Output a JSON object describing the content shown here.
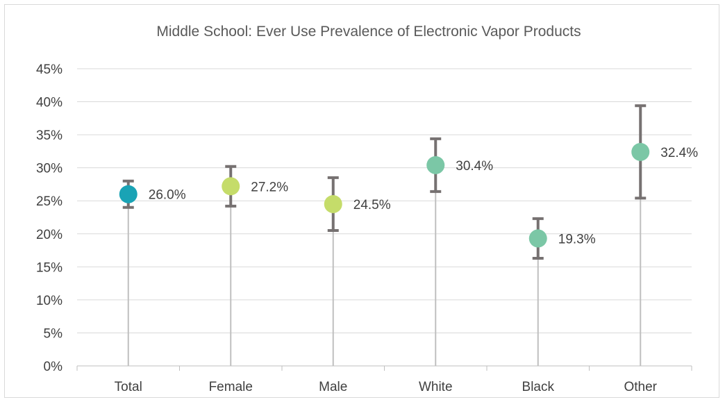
{
  "chart_data": {
    "type": "scatter",
    "title": "Middle School: Ever Use Prevalence of Electronic Vapor Products",
    "categories": [
      "Total",
      "Female",
      "Male",
      "White",
      "Black",
      "Other"
    ],
    "values": [
      26.0,
      27.2,
      24.5,
      30.4,
      19.3,
      32.4
    ],
    "ci_lower": [
      24.0,
      24.2,
      20.5,
      26.4,
      16.3,
      25.4
    ],
    "ci_upper": [
      28.0,
      30.2,
      28.5,
      34.4,
      22.3,
      39.4
    ],
    "data_labels": [
      "26.0%",
      "27.2%",
      "24.5%",
      "30.4%",
      "19.3%",
      "32.4%"
    ],
    "point_colors": [
      "#1aa3b5",
      "#c5dc6a",
      "#c5dc6a",
      "#7bc7a6",
      "#7bc7a6",
      "#7bc7a6"
    ],
    "ylim": [
      0,
      45
    ],
    "y_ticks": [
      0,
      5,
      10,
      15,
      20,
      25,
      30,
      35,
      40,
      45
    ],
    "y_tick_labels": [
      "0%",
      "5%",
      "10%",
      "15%",
      "20%",
      "25%",
      "30%",
      "35%",
      "40%",
      "45%"
    ],
    "xlabel": "",
    "ylabel": "",
    "grid": true,
    "legend": "none"
  }
}
